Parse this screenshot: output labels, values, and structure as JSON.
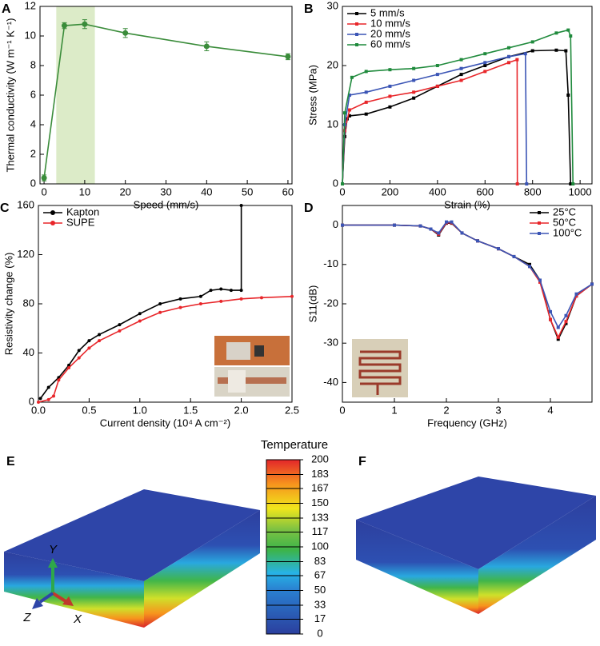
{
  "chart_data": [
    {
      "type": "line",
      "panel_label": "A",
      "xlabel": "Speed (mm/s)",
      "ylabel": "Thermal conductivity (W m⁻¹ K⁻¹)",
      "x": [
        0,
        5,
        10,
        20,
        40,
        60
      ],
      "values": [
        0.4,
        10.7,
        10.8,
        10.2,
        9.3,
        8.6
      ],
      "errors": [
        0.2,
        0.2,
        0.3,
        0.3,
        0.3,
        0.2
      ],
      "color": "#3a8c3a",
      "marker": "circle",
      "highlight_x": [
        3,
        12.5
      ],
      "highlight_color": "#dcebc8",
      "xlim": [
        -1,
        61
      ],
      "xticks": [
        0,
        10,
        20,
        30,
        40,
        50,
        60
      ],
      "ylim": [
        0,
        12
      ],
      "yticks": [
        0,
        2,
        4,
        6,
        8,
        10,
        12
      ]
    },
    {
      "type": "line",
      "panel_label": "B",
      "xlabel": "Strain (%)",
      "ylabel": "Stress (MPa)",
      "legend": "upper left",
      "marker": "square",
      "xlim": [
        0,
        1050
      ],
      "xticks": [
        0,
        200,
        400,
        600,
        800,
        1000
      ],
      "ylim": [
        0,
        30
      ],
      "yticks": [
        0,
        10,
        20,
        30
      ],
      "series": [
        {
          "name": "5 mm/s",
          "color": "#000000",
          "x": [
            0,
            10,
            20,
            30,
            100,
            200,
            300,
            400,
            500,
            600,
            700,
            800,
            900,
            940,
            950,
            960
          ],
          "values": [
            0,
            8,
            11,
            11.5,
            11.8,
            13,
            14.5,
            16.5,
            18.5,
            20,
            21.5,
            22.5,
            22.6,
            22.5,
            15,
            0
          ]
        },
        {
          "name": "10 mm/s",
          "color": "#e8262a",
          "x": [
            0,
            10,
            30,
            100,
            200,
            300,
            400,
            500,
            600,
            700,
            735,
            736
          ],
          "values": [
            0,
            9,
            12.5,
            13.8,
            14.8,
            15.5,
            16.5,
            17.5,
            19,
            20.5,
            21,
            0
          ]
        },
        {
          "name": "20 mm/s",
          "color": "#3b55b5",
          "x": [
            0,
            10,
            30,
            100,
            200,
            300,
            400,
            500,
            600,
            700,
            770,
            775
          ],
          "values": [
            0,
            10,
            15,
            15.5,
            16.5,
            17.5,
            18.5,
            19.5,
            20.5,
            21.5,
            22,
            0
          ]
        },
        {
          "name": "60 mm/s",
          "color": "#1f8a3c",
          "x": [
            0,
            10,
            40,
            100,
            200,
            300,
            400,
            500,
            600,
            700,
            800,
            900,
            950,
            960,
            970
          ],
          "values": [
            0,
            12,
            18,
            19,
            19.3,
            19.5,
            20,
            21,
            22,
            23,
            24,
            25.5,
            26,
            25,
            0
          ]
        }
      ]
    },
    {
      "type": "line",
      "panel_label": "C",
      "xlabel": "Current density (10⁴ A cm⁻²)",
      "ylabel": "Resistivity change (%)",
      "legend": "upper left",
      "marker": "circle",
      "xlim": [
        0,
        2.5
      ],
      "xticks": [
        {
          "value": 0,
          "label": "0.0"
        },
        0.5,
        {
          "value": 1,
          "label": "1.0"
        },
        1.5,
        {
          "value": 2,
          "label": "2.0"
        },
        2.5
      ],
      "ylim": [
        0,
        160
      ],
      "yticks": [
        0,
        40,
        80,
        120,
        160
      ],
      "series": [
        {
          "name": "Kapton",
          "color": "#000000",
          "x": [
            0.02,
            0.1,
            0.2,
            0.3,
            0.4,
            0.5,
            0.6,
            0.8,
            1.0,
            1.2,
            1.4,
            1.6,
            1.7,
            1.8,
            1.9,
            2.0,
            2.0
          ],
          "values": [
            3,
            12,
            20,
            30,
            42,
            50,
            55,
            63,
            72,
            80,
            84,
            86,
            91,
            92,
            91,
            91,
            160
          ]
        },
        {
          "name": "SUPE",
          "color": "#e8262a",
          "x": [
            0,
            0.1,
            0.15,
            0.2,
            0.3,
            0.4,
            0.5,
            0.6,
            0.8,
            1.0,
            1.2,
            1.4,
            1.6,
            1.8,
            2.0,
            2.2,
            2.5
          ],
          "values": [
            0,
            2,
            5,
            18,
            28,
            36,
            44,
            50,
            58,
            66,
            73,
            77,
            80,
            82,
            84,
            85,
            86
          ]
        }
      ]
    },
    {
      "type": "line",
      "panel_label": "D",
      "xlabel": "Frequency (GHz)",
      "ylabel": "S11(dB)",
      "legend": "upper right",
      "marker": "square",
      "xlim": [
        0,
        4.8
      ],
      "xticks": [
        0,
        1,
        2,
        3,
        4
      ],
      "ylim": [
        -45,
        5
      ],
      "yticks": [
        0,
        -10,
        -20,
        -30,
        -40
      ],
      "series": [
        {
          "name": "25°C",
          "color": "#000000",
          "x": [
            0,
            1,
            1.5,
            1.7,
            1.85,
            2.0,
            2.1,
            2.3,
            2.6,
            3.0,
            3.3,
            3.6,
            3.8,
            4.0,
            4.15,
            4.3,
            4.5,
            4.8
          ],
          "values": [
            0,
            0,
            -0.2,
            -1,
            -2.5,
            0.5,
            0.5,
            -2,
            -4,
            -6,
            -8,
            -10,
            -14,
            -24,
            -29,
            -25,
            -18,
            -15
          ]
        },
        {
          "name": "50°C",
          "color": "#e8262a",
          "x": [
            0,
            1,
            1.5,
            1.7,
            1.85,
            2.0,
            2.1,
            2.3,
            2.6,
            3.0,
            3.3,
            3.6,
            3.8,
            4.0,
            4.15,
            4.3,
            4.5,
            4.8
          ],
          "values": [
            0,
            0,
            -0.2,
            -1,
            -2.3,
            0.6,
            0.6,
            -2,
            -4,
            -6,
            -8,
            -10.5,
            -14.5,
            -24,
            -28.5,
            -24.5,
            -18,
            -15
          ]
        },
        {
          "name": "100°C",
          "color": "#3b55b5",
          "x": [
            0,
            1,
            1.5,
            1.7,
            1.85,
            2.0,
            2.1,
            2.3,
            2.6,
            3.0,
            3.3,
            3.6,
            3.8,
            4.0,
            4.15,
            4.3,
            4.5,
            4.8
          ],
          "values": [
            0,
            0,
            -0.2,
            -1,
            -2,
            0.8,
            0.8,
            -2,
            -4,
            -6,
            -8,
            -10.5,
            -14,
            -22,
            -26,
            -23,
            -17.5,
            -15
          ]
        }
      ]
    }
  ],
  "simulation": {
    "panel_labels": [
      "E",
      "F"
    ],
    "axis_labels": [
      "Y",
      "Z",
      "X"
    ],
    "colorbar": {
      "title": "Temperature",
      "lim": [
        0,
        200
      ],
      "ticks": [
        0,
        17,
        33,
        50,
        67,
        83,
        100,
        117,
        133,
        150,
        167,
        183,
        200
      ]
    }
  }
}
